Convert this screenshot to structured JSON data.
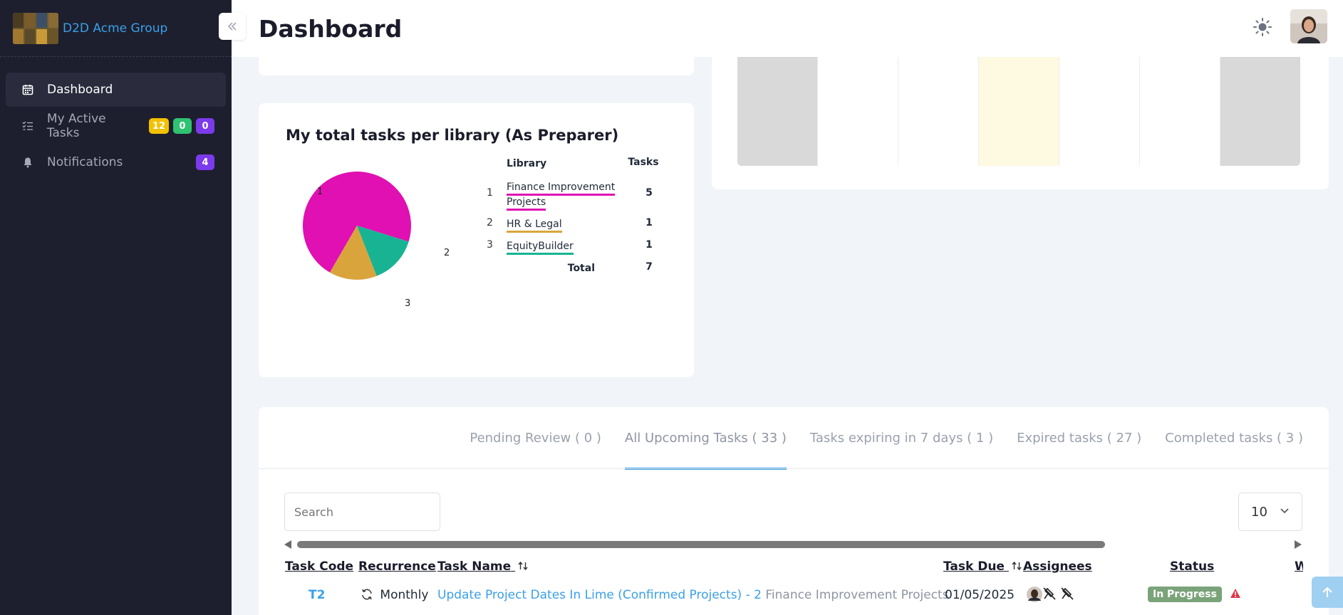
{
  "brand": {
    "name": "D2D Acme Group"
  },
  "sidebar": {
    "items": [
      {
        "label": "Dashboard",
        "icon": "calendar-icon",
        "active": true
      },
      {
        "label": "My Active Tasks",
        "icon": "checklist-icon",
        "badges": [
          "12",
          "0",
          "0"
        ]
      },
      {
        "label": "Notifications",
        "icon": "bell-icon",
        "badge": "4"
      }
    ]
  },
  "header": {
    "title": "Dashboard",
    "theme_icon": "sun-icon"
  },
  "pie_card": {
    "title": "My total tasks per library (As Preparer)",
    "col_library": "Library",
    "col_tasks": "Tasks",
    "rows": [
      {
        "num": "1",
        "name": "Finance Improvement Projects",
        "count": "5",
        "color": "#e010b2"
      },
      {
        "num": "2",
        "name": "HR & Legal",
        "count": "1",
        "color": "#daa43d"
      },
      {
        "num": "3",
        "name": "EquityBuilder",
        "count": "1",
        "color": "#17b392"
      }
    ],
    "total_label": "Total",
    "total_value": "7",
    "slice_labels": [
      "1",
      "2",
      "3"
    ]
  },
  "chart_data": {
    "type": "pie",
    "categories": [
      "Finance Improvement Projects",
      "HR & Legal",
      "EquityBuilder"
    ],
    "values": [
      5,
      1,
      1
    ],
    "title": "My total tasks per library (As Preparer)",
    "colors": [
      "#e010b2",
      "#daa43d",
      "#17b392"
    ]
  },
  "tasks": {
    "tabs": [
      "Pending Review ( 0 )",
      "All Upcoming Tasks ( 33 )",
      "Tasks expiring in 7 days ( 1 )",
      "Expired tasks ( 27 )",
      "Completed tasks ( 3 )"
    ],
    "active_tab": 1,
    "search_placeholder": "Search",
    "page_size": "10",
    "columns": [
      "Task Code",
      "Recurrence",
      "Task Name",
      "Task Due",
      "Assignees",
      "Status",
      "W"
    ],
    "rows": [
      {
        "code": "T2",
        "recurrence": "Monthly",
        "name": "Update Project Dates In Lime (Confirmed Projects) - 2",
        "library": "Finance Improvement Projects",
        "due": "01/05/2025",
        "status": "In Progress"
      }
    ]
  },
  "colors": {
    "accent": "#3aa0e8",
    "sidebar_bg": "#1e1f2e",
    "status_green": "#7aa37a",
    "warning": "#e0364b"
  }
}
